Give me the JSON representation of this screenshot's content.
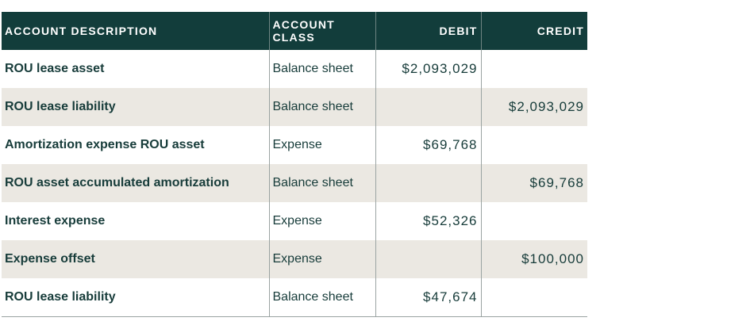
{
  "table": {
    "columns": [
      "ACCOUNT DESCRIPTION",
      "ACCOUNT CLASS",
      "DEBIT",
      "CREDIT"
    ],
    "rows": [
      [
        "ROU lease asset",
        "Balance sheet",
        "$2,093,029",
        null
      ],
      [
        "ROU lease liability",
        "Balance sheet",
        null,
        "$2,093,029"
      ],
      [
        "Amortization expense ROU asset",
        "Expense",
        "$69,768",
        null
      ],
      [
        "ROU asset accumulated amortization",
        "Balance sheet",
        null,
        "$69,768"
      ],
      [
        "Interest expense",
        "Expense",
        "$52,326",
        null
      ],
      [
        "Expense offset",
        "Expense",
        null,
        "$100,000"
      ],
      [
        "ROU lease liability",
        "Balance sheet",
        "$47,674",
        null
      ]
    ]
  }
}
